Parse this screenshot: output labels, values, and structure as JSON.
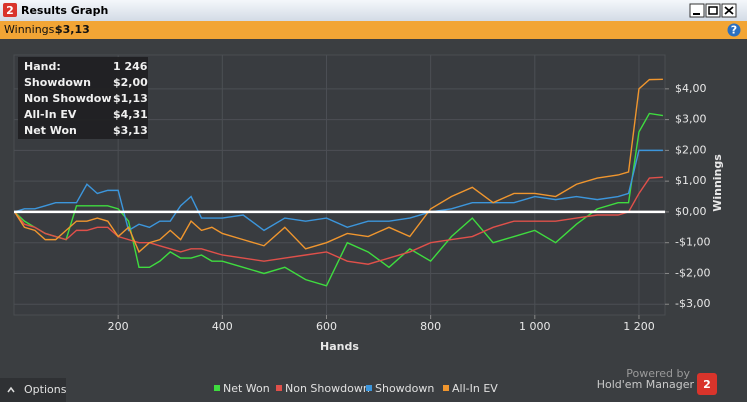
{
  "window": {
    "title": "Results Graph",
    "logo_glyph": "2",
    "help_icon": "?",
    "winnings_label": "Winnings:",
    "winnings_value": "$3,13",
    "options": "Options",
    "powered_by": "Powered by",
    "brand": "Hold'em Manager"
  },
  "info": [
    {
      "label": "Hand:",
      "value": "1 246"
    },
    {
      "label": "Showdown",
      "value": "$2,00"
    },
    {
      "label": "Non Showdow",
      "value": "$1,13"
    },
    {
      "label": "All-In EV",
      "value": "$4,31"
    },
    {
      "label": "Net Won",
      "value": "$3,13"
    }
  ],
  "chart_data": {
    "type": "line",
    "x_label": "Hands",
    "y_label": "Winnings",
    "grid": true,
    "xlim": [
      0,
      1250
    ],
    "ylim": [
      -3.35,
      5.1
    ],
    "xticks": [
      200,
      400,
      600,
      800,
      {
        "value": 1000,
        "label": "1 000"
      },
      {
        "value": 1200,
        "label": "1 200"
      }
    ],
    "yticks": [
      {
        "value": -3,
        "label": "-$3,00"
      },
      {
        "value": -2,
        "label": "-$2,00"
      },
      {
        "value": -1,
        "label": "-$1,00"
      },
      {
        "value": 0,
        "label": "$0,00"
      },
      {
        "value": 1,
        "label": "$1,00"
      },
      {
        "value": 2,
        "label": "$2,00"
      },
      {
        "value": 3,
        "label": "$3,00"
      },
      {
        "value": 4,
        "label": "$4,00"
      }
    ],
    "x": [
      1,
      20,
      40,
      60,
      80,
      100,
      120,
      140,
      160,
      180,
      200,
      220,
      240,
      260,
      280,
      300,
      320,
      340,
      360,
      380,
      400,
      440,
      480,
      520,
      560,
      600,
      640,
      680,
      720,
      760,
      800,
      840,
      880,
      920,
      960,
      1000,
      1040,
      1080,
      1120,
      1160,
      1180,
      1200,
      1220,
      1246
    ],
    "series": [
      {
        "name": "Net Won",
        "color": "#3fdc3f",
        "values": [
          0,
          -0.3,
          -0.5,
          -0.7,
          -0.8,
          -0.9,
          0.2,
          0.2,
          0.2,
          0.2,
          0.1,
          -0.3,
          -1.8,
          -1.8,
          -1.6,
          -1.3,
          -1.5,
          -1.5,
          -1.4,
          -1.6,
          -1.6,
          -1.8,
          -2.0,
          -1.8,
          -2.2,
          -2.4,
          -1.0,
          -1.3,
          -1.8,
          -1.2,
          -1.6,
          -0.8,
          -0.2,
          -1.0,
          -0.8,
          -0.6,
          -1.0,
          -0.4,
          0.1,
          0.3,
          0.3,
          2.6,
          3.2,
          3.13
        ]
      },
      {
        "name": "Non Showdown",
        "color": "#e0504a",
        "values": [
          0,
          -0.4,
          -0.5,
          -0.7,
          -0.8,
          -0.9,
          -0.6,
          -0.6,
          -0.5,
          -0.5,
          -0.8,
          -0.9,
          -1.0,
          -1.0,
          -1.1,
          -1.2,
          -1.3,
          -1.2,
          -1.2,
          -1.3,
          -1.4,
          -1.5,
          -1.6,
          -1.5,
          -1.4,
          -1.3,
          -1.6,
          -1.7,
          -1.5,
          -1.3,
          -1.0,
          -0.9,
          -0.8,
          -0.5,
          -0.3,
          -0.3,
          -0.3,
          -0.2,
          -0.1,
          -0.1,
          0.0,
          0.6,
          1.1,
          1.13
        ]
      },
      {
        "name": "Showdown",
        "color": "#3c96dc",
        "values": [
          0,
          0.1,
          0.1,
          0.2,
          0.3,
          0.3,
          0.3,
          0.9,
          0.6,
          0.7,
          0.7,
          -0.6,
          -0.4,
          -0.5,
          -0.3,
          -0.3,
          0.2,
          0.5,
          -0.2,
          -0.2,
          -0.2,
          -0.1,
          -0.6,
          -0.2,
          -0.3,
          -0.2,
          -0.5,
          -0.3,
          -0.3,
          -0.2,
          0.0,
          0.1,
          0.3,
          0.3,
          0.3,
          0.5,
          0.4,
          0.5,
          0.4,
          0.5,
          0.6,
          2.0,
          2.0,
          2.0
        ]
      },
      {
        "name": "All-In EV",
        "color": "#f0962e",
        "values": [
          0,
          -0.5,
          -0.6,
          -0.9,
          -0.9,
          -0.6,
          -0.3,
          -0.3,
          -0.2,
          -0.3,
          -0.8,
          -0.5,
          -1.3,
          -1.0,
          -0.9,
          -0.6,
          -0.9,
          -0.3,
          -0.6,
          -0.5,
          -0.7,
          -0.9,
          -1.1,
          -0.5,
          -1.2,
          -1.0,
          -0.7,
          -0.8,
          -0.5,
          -0.8,
          0.1,
          0.5,
          0.8,
          0.3,
          0.6,
          0.6,
          0.5,
          0.9,
          1.1,
          1.2,
          1.3,
          4.0,
          4.3,
          4.31
        ]
      }
    ]
  }
}
